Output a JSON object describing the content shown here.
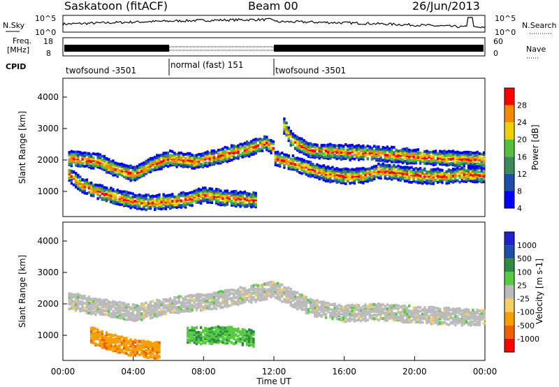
{
  "header": {
    "station": "Saskatoon (fitACF)",
    "beam": "Beam 00",
    "date": "26/Jun/2013"
  },
  "strips": {
    "nsky_label": "N.Sky",
    "nsearch_label": "N.Search",
    "nsky_ticks": [
      "10^5",
      "10^0"
    ],
    "nsearch_ticks": [
      "10^5",
      "10^0"
    ],
    "freq_label_1": "Freq.",
    "freq_label_2": "[MHz]",
    "freq_ticks": [
      "18",
      "8"
    ],
    "nave_label": "Nave",
    "nave_ticks": [
      "60",
      "0"
    ],
    "cpid_label": "CPID",
    "cpid_segments": [
      {
        "label": "twofsound -3501",
        "start_h": 0,
        "end_h": 6
      },
      {
        "label": "normal (fast) 151",
        "start_h": 6,
        "end_h": 12
      },
      {
        "label": "twofsound -3501",
        "start_h": 12,
        "end_h": 24
      }
    ]
  },
  "x_axis": {
    "label": "Time UT",
    "ticks": [
      "00:00",
      "04:00",
      "08:00",
      "12:00",
      "16:00",
      "20:00",
      "00:00"
    ]
  },
  "chart_data": [
    {
      "type": "heatmap",
      "title": "Power",
      "xlabel": "Time UT",
      "ylabel": "Slant Range [km]",
      "xlim": [
        0,
        24
      ],
      "ylim": [
        200,
        4600
      ],
      "y_ticks": [
        1000,
        2000,
        3000,
        4000
      ],
      "colorbar_label": "Power [dB]",
      "colorbar_ticks": [
        "28",
        "24",
        "20",
        "16",
        "12",
        "8",
        "4"
      ],
      "colors": [
        "#0000ff",
        "#1f4ea6",
        "#3a8a5a",
        "#55c040",
        "#f0d000",
        "#f58a00",
        "#ff0000"
      ],
      "bands": [
        {
          "name": "upper",
          "points": [
            [
              0.3,
              2050
            ],
            [
              2,
              1950
            ],
            [
              3,
              1700
            ],
            [
              4,
              1550
            ],
            [
              5,
              1850
            ],
            [
              6,
              2050
            ],
            [
              7.5,
              1950
            ],
            [
              9,
              2150
            ],
            [
              10.5,
              2350
            ],
            [
              11.5,
              2550
            ],
            [
              12,
              2350
            ]
          ]
        },
        {
          "name": "lower",
          "points": [
            [
              0.3,
              1550
            ],
            [
              1,
              1200
            ],
            [
              2,
              980
            ],
            [
              3,
              820
            ],
            [
              4,
              680
            ],
            [
              5,
              640
            ],
            [
              6,
              680
            ],
            [
              7,
              740
            ],
            [
              8,
              900
            ],
            [
              9,
              800
            ],
            [
              10,
              760
            ],
            [
              11,
              720
            ]
          ]
        },
        {
          "name": "afternoon",
          "points": [
            [
              12,
              2050
            ],
            [
              13,
              1900
            ],
            [
              14,
              1700
            ],
            [
              15,
              1550
            ],
            [
              16,
              1480
            ],
            [
              17,
              1500
            ],
            [
              18,
              1650
            ],
            [
              19,
              1600
            ],
            [
              20,
              1500
            ],
            [
              21,
              1480
            ],
            [
              22,
              1500
            ],
            [
              23,
              1550
            ],
            [
              24,
              1500
            ]
          ]
        },
        {
          "name": "afternoon-upper",
          "points": [
            [
              12.5,
              3100
            ],
            [
              13,
              2600
            ],
            [
              14,
              2300
            ],
            [
              16,
              2250
            ],
            [
              18,
              2200
            ],
            [
              20,
              2100
            ],
            [
              22,
              2050
            ],
            [
              24,
              2000
            ]
          ]
        }
      ]
    },
    {
      "type": "heatmap",
      "title": "Velocity",
      "xlabel": "Time UT",
      "ylabel": "Slant Range [km]",
      "xlim": [
        0,
        24
      ],
      "ylim": [
        200,
        4600
      ],
      "y_ticks": [
        1000,
        2000,
        3000,
        4000
      ],
      "colorbar_label": "Velocity [m s-1]",
      "colorbar_ticks": [
        "1000",
        "500",
        "100",
        "25",
        "-25",
        "-100",
        "-500",
        "-1000"
      ],
      "colors": [
        "#ff0000",
        "#f06000",
        "#f5a000",
        "#f5d060",
        "#bbbbbb",
        "#55cc40",
        "#2e8a45",
        "#1f4ea6",
        "#2020d0"
      ],
      "bands": [
        {
          "name": "grey-main",
          "points": [
            [
              0.3,
              2100
            ],
            [
              2,
              1900
            ],
            [
              4,
              1700
            ],
            [
              6,
              1950
            ],
            [
              8,
              2050
            ],
            [
              10,
              2250
            ],
            [
              12,
              2450
            ],
            [
              14,
              1900
            ],
            [
              16,
              1700
            ],
            [
              18,
              1750
            ],
            [
              20,
              1650
            ],
            [
              22,
              1600
            ],
            [
              24,
              1550
            ]
          ]
        },
        {
          "name": "orange-low",
          "points": [
            [
              1.5,
              1000
            ],
            [
              2.5,
              800
            ],
            [
              3.5,
              650
            ],
            [
              4.5,
              560
            ],
            [
              5.5,
              520
            ]
          ]
        },
        {
          "name": "green-mid",
          "points": [
            [
              7,
              1000
            ],
            [
              8,
              980
            ],
            [
              9,
              1020
            ],
            [
              10,
              960
            ],
            [
              10.8,
              900
            ]
          ]
        }
      ]
    }
  ]
}
